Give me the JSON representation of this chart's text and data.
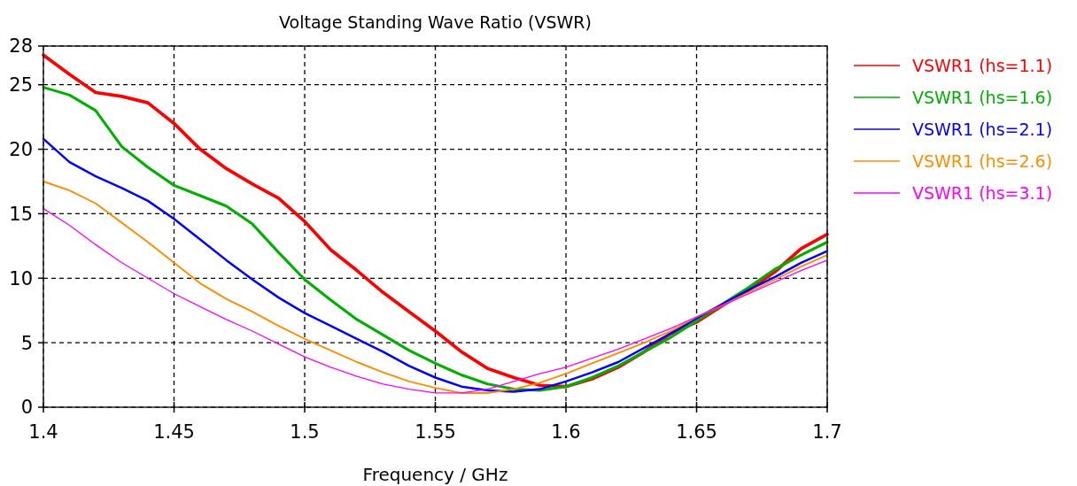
{
  "chart_data": {
    "type": "line",
    "title": "Voltage Standing Wave Ratio (VSWR)",
    "xlabel": "Frequency / GHz",
    "x": [
      1.4,
      1.41,
      1.42,
      1.43,
      1.44,
      1.45,
      1.46,
      1.47,
      1.48,
      1.49,
      1.5,
      1.51,
      1.52,
      1.53,
      1.54,
      1.55,
      1.56,
      1.57,
      1.58,
      1.59,
      1.6,
      1.61,
      1.62,
      1.63,
      1.64,
      1.65,
      1.66,
      1.67,
      1.68,
      1.69,
      1.7
    ],
    "series": [
      {
        "name": "VSWR1 (hs=1.1)",
        "color": "#ff0000",
        "values": [
          27.3,
          25.8,
          24.4,
          24.1,
          23.6,
          22.0,
          20.0,
          18.5,
          17.3,
          16.2,
          14.4,
          12.2,
          10.6,
          8.9,
          7.4,
          5.9,
          4.3,
          3.0,
          2.3,
          1.7,
          1.6,
          2.2,
          3.1,
          4.3,
          5.7,
          6.6,
          7.9,
          9.1,
          10.5,
          12.3,
          13.4
        ]
      },
      {
        "name": "VSWR1 (hs=1.6)",
        "color": "#00b000",
        "values": [
          24.8,
          24.2,
          23.0,
          20.2,
          18.6,
          17.2,
          16.4,
          15.6,
          14.2,
          12.0,
          9.9,
          8.3,
          6.8,
          5.6,
          4.4,
          3.4,
          2.5,
          1.8,
          1.4,
          1.3,
          1.6,
          2.3,
          3.2,
          4.3,
          5.4,
          6.7,
          8.0,
          9.3,
          10.7,
          11.8,
          12.8
        ]
      },
      {
        "name": "VSWR1 (hs=2.1)",
        "color": "#0000ff",
        "values": [
          20.8,
          19.0,
          17.9,
          17.0,
          16.0,
          14.6,
          13.0,
          11.4,
          9.9,
          8.5,
          7.3,
          6.3,
          5.3,
          4.3,
          3.2,
          2.3,
          1.6,
          1.3,
          1.2,
          1.4,
          2.0,
          2.7,
          3.5,
          4.6,
          5.7,
          6.9,
          8.0,
          9.1,
          10.1,
          11.2,
          12.1
        ]
      },
      {
        "name": "VSWR1 (hs=2.6)",
        "color": "#ff8c00",
        "values": [
          17.5,
          16.8,
          15.8,
          14.3,
          12.8,
          11.2,
          9.6,
          8.4,
          7.4,
          6.3,
          5.3,
          4.4,
          3.5,
          2.7,
          2.0,
          1.5,
          1.1,
          1.1,
          1.4,
          1.9,
          2.6,
          3.4,
          4.2,
          5.0,
          5.9,
          7.0,
          7.9,
          8.9,
          9.9,
          10.9,
          11.8
        ]
      },
      {
        "name": "VSWR1 (hs=3.1)",
        "color": "#ff00ff",
        "values": [
          15.4,
          14.1,
          12.6,
          11.2,
          10.0,
          8.8,
          7.8,
          6.8,
          5.9,
          4.9,
          3.9,
          3.1,
          2.4,
          1.8,
          1.4,
          1.1,
          1.1,
          1.4,
          2.0,
          2.6,
          3.1,
          3.8,
          4.5,
          5.3,
          6.1,
          7.0,
          7.9,
          8.8,
          9.7,
          10.6,
          11.4
        ]
      }
    ],
    "xlim": [
      1.4,
      1.7
    ],
    "xticks": [
      1.4,
      1.45,
      1.5,
      1.55,
      1.6,
      1.65,
      1.7
    ],
    "ylim": [
      0,
      28
    ],
    "yticks": [
      0,
      5,
      10,
      15,
      20,
      25,
      28
    ],
    "grid": true,
    "legend": "right",
    "line_style": "solid"
  }
}
